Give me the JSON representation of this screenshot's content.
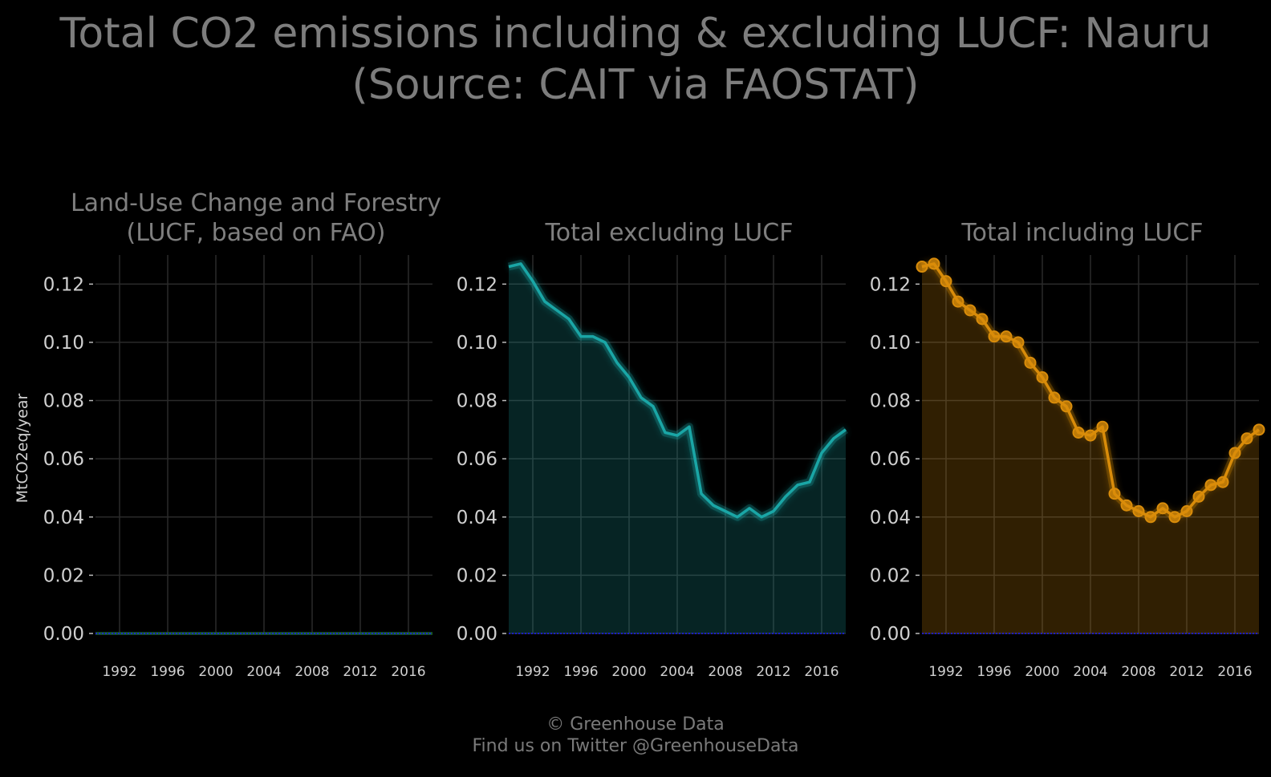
{
  "title": {
    "line1": "Total CO2 emissions including & excluding LUCF: Nauru",
    "line2": "(Source: CAIT via FAOSTAT)"
  },
  "footer": {
    "line1": "© Greenhouse Data",
    "line2": "Find us on Twitter @GreenhouseData"
  },
  "colors": {
    "background": "#000000",
    "grid": "#2a2a2a",
    "baseline": "#1a1aff",
    "lucf": "#1a5e2a",
    "excl": "#1aa6a6",
    "incl": "#d98c0a"
  },
  "chart_data": [
    {
      "type": "area",
      "title_lines": [
        "Land-Use Change and Forestry",
        "(LUCF, based on FAO)"
      ],
      "ylabel": "MtCO2eq/year",
      "ylim": [
        0,
        0.13
      ],
      "xlim": [
        1990,
        2018
      ],
      "yticks": [
        "0.00",
        "0.02",
        "0.04",
        "0.06",
        "0.08",
        "0.10",
        "0.12"
      ],
      "xticks": [
        "1992",
        "1996",
        "2000",
        "2004",
        "2008",
        "2012",
        "2016"
      ],
      "grid": true,
      "series": [
        {
          "x": [
            1990,
            1991,
            1992,
            1993,
            1994,
            1995,
            1996,
            1997,
            1998,
            1999,
            2000,
            2001,
            2002,
            2003,
            2004,
            2005,
            2006,
            2007,
            2008,
            2009,
            2010,
            2011,
            2012,
            2013,
            2014,
            2015,
            2016,
            2017,
            2018
          ],
          "values": [
            0,
            0,
            0,
            0,
            0,
            0,
            0,
            0,
            0,
            0,
            0,
            0,
            0,
            0,
            0,
            0,
            0,
            0,
            0,
            0,
            0,
            0,
            0,
            0,
            0,
            0,
            0,
            0,
            0
          ]
        }
      ]
    },
    {
      "type": "area",
      "title_lines": [
        "",
        "Total excluding LUCF"
      ],
      "ylim": [
        0,
        0.13
      ],
      "xlim": [
        1990,
        2018
      ],
      "yticks": [
        "0.00",
        "0.02",
        "0.04",
        "0.06",
        "0.08",
        "0.10",
        "0.12"
      ],
      "xticks": [
        "1992",
        "1996",
        "2000",
        "2004",
        "2008",
        "2012",
        "2016"
      ],
      "grid": true,
      "series": [
        {
          "x": [
            1990,
            1991,
            1992,
            1993,
            1994,
            1995,
            1996,
            1997,
            1998,
            1999,
            2000,
            2001,
            2002,
            2003,
            2004,
            2005,
            2006,
            2007,
            2008,
            2009,
            2010,
            2011,
            2012,
            2013,
            2014,
            2015,
            2016,
            2017,
            2018
          ],
          "values": [
            0.126,
            0.127,
            0.121,
            0.114,
            0.111,
            0.108,
            0.102,
            0.102,
            0.1,
            0.093,
            0.088,
            0.081,
            0.078,
            0.069,
            0.068,
            0.071,
            0.048,
            0.044,
            0.042,
            0.04,
            0.043,
            0.04,
            0.042,
            0.047,
            0.051,
            0.052,
            0.062,
            0.067,
            0.07
          ]
        }
      ]
    },
    {
      "type": "area",
      "title_lines": [
        "",
        "Total including LUCF"
      ],
      "ylim": [
        0,
        0.13
      ],
      "xlim": [
        1990,
        2018
      ],
      "yticks": [
        "0.00",
        "0.02",
        "0.04",
        "0.06",
        "0.08",
        "0.10",
        "0.12"
      ],
      "xticks": [
        "1992",
        "1996",
        "2000",
        "2004",
        "2008",
        "2012",
        "2016"
      ],
      "grid": true,
      "markers": true,
      "series": [
        {
          "x": [
            1990,
            1991,
            1992,
            1993,
            1994,
            1995,
            1996,
            1997,
            1998,
            1999,
            2000,
            2001,
            2002,
            2003,
            2004,
            2005,
            2006,
            2007,
            2008,
            2009,
            2010,
            2011,
            2012,
            2013,
            2014,
            2015,
            2016,
            2017,
            2018
          ],
          "values": [
            0.126,
            0.127,
            0.121,
            0.114,
            0.111,
            0.108,
            0.102,
            0.102,
            0.1,
            0.093,
            0.088,
            0.081,
            0.078,
            0.069,
            0.068,
            0.071,
            0.048,
            0.044,
            0.042,
            0.04,
            0.043,
            0.04,
            0.042,
            0.047,
            0.051,
            0.052,
            0.062,
            0.067,
            0.07
          ]
        }
      ]
    }
  ]
}
